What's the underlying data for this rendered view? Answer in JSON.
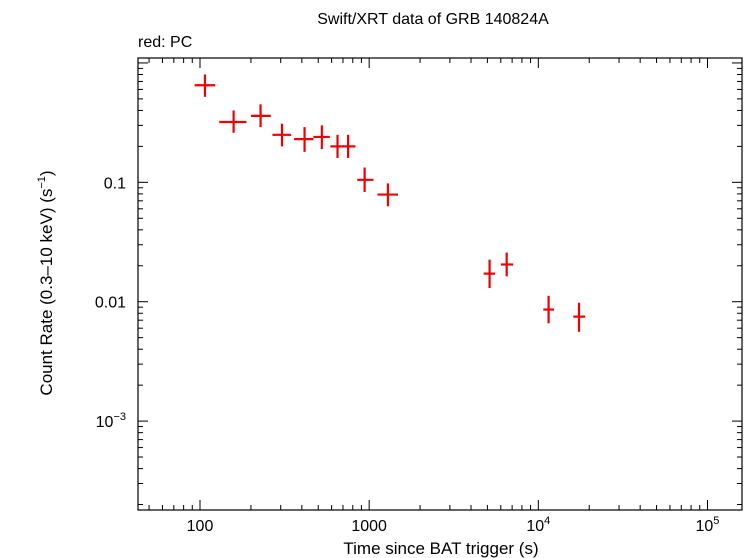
{
  "chart_data": {
    "type": "scatter",
    "title": "Swift/XRT data of GRB 140824A",
    "subtitle": "red: PC",
    "xlabel": "Time since BAT trigger (s)",
    "ylabel_main": "Count Rate (0.3–10 keV) (s",
    "ylabel_sup": "−1",
    "ylabel_close": ")",
    "x_scale": "log",
    "y_scale": "log",
    "xlim": [
      43,
      160000
    ],
    "ylim": [
      0.00018,
      1.1
    ],
    "x_ticks": [
      {
        "value": 100,
        "base": "100",
        "sup": ""
      },
      {
        "value": 1000,
        "base": "1000",
        "sup": ""
      },
      {
        "value": 10000,
        "base": "10",
        "sup": "4"
      },
      {
        "value": 100000,
        "base": "10",
        "sup": "5"
      }
    ],
    "y_ticks": [
      {
        "value": 0.1,
        "base": "0.1",
        "sup": ""
      },
      {
        "value": 0.01,
        "base": "0.01",
        "sup": ""
      },
      {
        "value": 0.001,
        "base": "10",
        "sup": "−3"
      }
    ],
    "series": [
      {
        "name": "PC",
        "color": "#ee0000",
        "points": [
          {
            "x": 107,
            "xlo": 93,
            "xhi": 123,
            "y": 0.65,
            "ylo": 0.52,
            "yhi": 0.8
          },
          {
            "x": 158,
            "xlo": 130,
            "xhi": 188,
            "y": 0.32,
            "ylo": 0.26,
            "yhi": 0.4
          },
          {
            "x": 228,
            "xlo": 200,
            "xhi": 262,
            "y": 0.36,
            "ylo": 0.29,
            "yhi": 0.45
          },
          {
            "x": 305,
            "xlo": 268,
            "xhi": 345,
            "y": 0.25,
            "ylo": 0.2,
            "yhi": 0.31
          },
          {
            "x": 415,
            "xlo": 360,
            "xhi": 468,
            "y": 0.23,
            "ylo": 0.18,
            "yhi": 0.29
          },
          {
            "x": 525,
            "xlo": 468,
            "xhi": 585,
            "y": 0.24,
            "ylo": 0.19,
            "yhi": 0.3
          },
          {
            "x": 650,
            "xlo": 590,
            "xhi": 710,
            "y": 0.2,
            "ylo": 0.16,
            "yhi": 0.25
          },
          {
            "x": 750,
            "xlo": 700,
            "xhi": 830,
            "y": 0.2,
            "ylo": 0.16,
            "yhi": 0.25
          },
          {
            "x": 940,
            "xlo": 850,
            "xhi": 1060,
            "y": 0.105,
            "ylo": 0.083,
            "yhi": 0.133
          },
          {
            "x": 1290,
            "xlo": 1120,
            "xhi": 1480,
            "y": 0.079,
            "ylo": 0.063,
            "yhi": 0.098
          },
          {
            "x": 5150,
            "xlo": 4750,
            "xhi": 5550,
            "y": 0.0172,
            "ylo": 0.013,
            "yhi": 0.0225
          },
          {
            "x": 6500,
            "xlo": 6000,
            "xhi": 7100,
            "y": 0.0205,
            "ylo": 0.0163,
            "yhi": 0.0258
          },
          {
            "x": 11500,
            "xlo": 10700,
            "xhi": 12400,
            "y": 0.0086,
            "ylo": 0.0066,
            "yhi": 0.0112
          },
          {
            "x": 17400,
            "xlo": 16100,
            "xhi": 18900,
            "y": 0.0075,
            "ylo": 0.0056,
            "yhi": 0.0098
          }
        ]
      }
    ]
  }
}
